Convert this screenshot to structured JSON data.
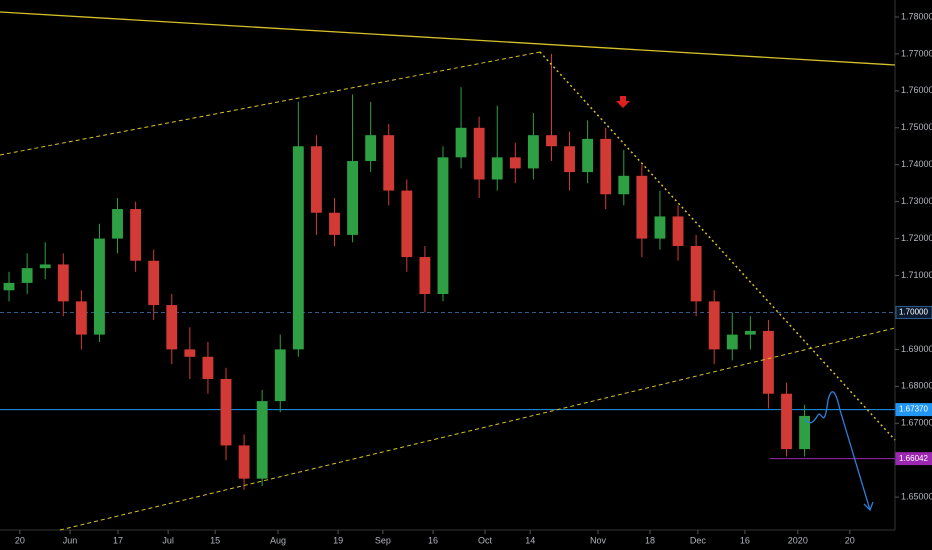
{
  "chart_data": {
    "type": "candlestick",
    "x": [
      2,
      6,
      10,
      14,
      18,
      22,
      26,
      30,
      34,
      38,
      42,
      46,
      50,
      54,
      58,
      62,
      66,
      70,
      74,
      78,
      82,
      86,
      90,
      94,
      98,
      102,
      106,
      110,
      114,
      118,
      122,
      126,
      130,
      134,
      138,
      142,
      146,
      150,
      154,
      158,
      162,
      166,
      170,
      174,
      178
    ],
    "open": [
      1.706,
      1.708,
      1.712,
      1.713,
      1.703,
      1.694,
      1.72,
      1.728,
      1.714,
      1.702,
      1.69,
      1.688,
      1.682,
      1.664,
      1.655,
      1.676,
      1.69,
      1.745,
      1.727,
      1.721,
      1.741,
      1.748,
      1.733,
      1.715,
      1.705,
      1.742,
      1.75,
      1.736,
      1.742,
      1.739,
      1.748,
      1.745,
      1.738,
      1.747,
      1.732,
      1.737,
      1.72,
      1.726,
      1.718,
      1.703,
      1.69,
      1.694,
      1.695,
      1.678,
      1.663
    ],
    "high": [
      1.711,
      1.716,
      1.719,
      1.716,
      1.706,
      1.724,
      1.731,
      1.73,
      1.717,
      1.705,
      1.696,
      1.692,
      1.685,
      1.667,
      1.679,
      1.694,
      1.757,
      1.748,
      1.731,
      1.759,
      1.757,
      1.751,
      1.736,
      1.718,
      1.745,
      1.761,
      1.753,
      1.756,
      1.746,
      1.754,
      1.77,
      1.749,
      1.752,
      1.75,
      1.744,
      1.74,
      1.733,
      1.729,
      1.721,
      1.706,
      1.7,
      1.699,
      1.698,
      1.681,
      1.675
    ],
    "low": [
      1.703,
      1.705,
      1.709,
      1.699,
      1.69,
      1.692,
      1.716,
      1.711,
      1.698,
      1.686,
      1.682,
      1.678,
      1.66,
      1.652,
      1.653,
      1.673,
      1.688,
      1.721,
      1.718,
      1.719,
      1.738,
      1.729,
      1.711,
      1.7,
      1.703,
      1.739,
      1.731,
      1.733,
      1.735,
      1.736,
      1.741,
      1.733,
      1.735,
      1.728,
      1.729,
      1.715,
      1.717,
      1.714,
      1.699,
      1.686,
      1.687,
      1.69,
      1.674,
      1.661,
      1.661
    ],
    "close": [
      1.708,
      1.712,
      1.713,
      1.703,
      1.694,
      1.72,
      1.728,
      1.714,
      1.702,
      1.69,
      1.688,
      1.682,
      1.664,
      1.655,
      1.676,
      1.69,
      1.745,
      1.727,
      1.721,
      1.741,
      1.748,
      1.733,
      1.715,
      1.705,
      1.742,
      1.75,
      1.736,
      1.742,
      1.739,
      1.748,
      1.745,
      1.738,
      1.747,
      1.732,
      1.737,
      1.72,
      1.726,
      1.718,
      1.703,
      1.69,
      1.694,
      1.695,
      1.678,
      1.663,
      1.672
    ],
    "up_color": "#2ea043",
    "down_color": "#d23b35",
    "xlim": [
      0,
      198
    ],
    "xticks": [
      {
        "value": 4.4,
        "label": "20"
      },
      {
        "value": 15.5,
        "label": "Jun"
      },
      {
        "value": 26.1,
        "label": "17"
      },
      {
        "value": 37.2,
        "label": "Jul"
      },
      {
        "value": 47.6,
        "label": "15"
      },
      {
        "value": 61.5,
        "label": "Aug"
      },
      {
        "value": 74.8,
        "label": "19"
      },
      {
        "value": 84.7,
        "label": "Sep"
      },
      {
        "value": 95.8,
        "label": "16"
      },
      {
        "value": 107.3,
        "label": "Oct"
      },
      {
        "value": 117.3,
        "label": "14"
      },
      {
        "value": 132.3,
        "label": "Nov"
      },
      {
        "value": 143.8,
        "label": "18"
      },
      {
        "value": 154.4,
        "label": "Dec"
      },
      {
        "value": 164.8,
        "label": "16"
      },
      {
        "value": 176.5,
        "label": "2020"
      },
      {
        "value": 188,
        "label": "20"
      }
    ],
    "ylim": [
      1.6411,
      1.7846
    ],
    "yticks": [
      {
        "value": 1.65,
        "label": "1.65000"
      },
      {
        "value": 1.66,
        "label": "1.66000"
      },
      {
        "value": 1.67,
        "label": "1.67000"
      },
      {
        "value": 1.68,
        "label": "1.68000"
      },
      {
        "value": 1.69,
        "label": "1.69000"
      },
      {
        "value": 1.7,
        "label": "1.70000"
      },
      {
        "value": 1.71,
        "label": "1.71000"
      },
      {
        "value": 1.72,
        "label": "1.72000"
      },
      {
        "value": 1.73,
        "label": "1.73000"
      },
      {
        "value": 1.74,
        "label": "1.74000"
      },
      {
        "value": 1.75,
        "label": "1.75000"
      },
      {
        "value": 1.76,
        "label": "1.76000"
      },
      {
        "value": 1.77,
        "label": "1.77000"
      },
      {
        "value": 1.78,
        "label": "1.78000"
      }
    ],
    "levels": [
      {
        "value": 1.7,
        "label": "1.70000",
        "color": "#2f5c8f",
        "style": "dashed"
      },
      {
        "value": 1.6737,
        "label": "1.67370",
        "color": "#2196f3",
        "style": "solid"
      },
      {
        "value": 1.66042,
        "label": "1.66042",
        "color": "#9c27b0",
        "style": "solid"
      }
    ]
  }
}
